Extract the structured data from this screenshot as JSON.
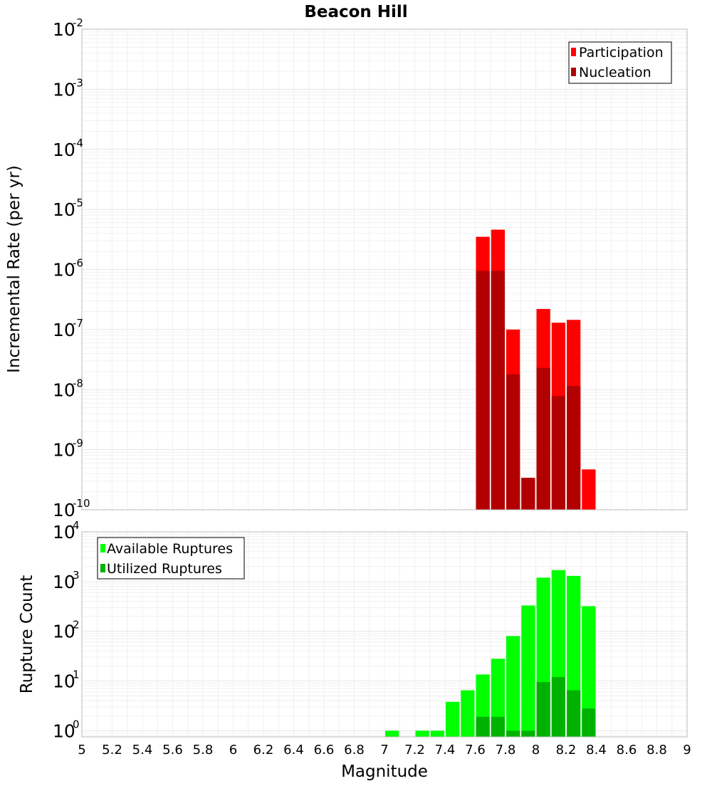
{
  "chart_data": [
    {
      "type": "bar",
      "title": "Beacon Hill",
      "xlabel": "",
      "ylabel": "Incremental Rate (per yr)",
      "yscale": "log",
      "ylim": [
        1e-10,
        0.01
      ],
      "xlim": [
        5,
        9
      ],
      "bin_width": 0.1,
      "legend": "top-right",
      "grid": true,
      "y_ticks": [
        {
          "base": "10",
          "exp": "-10"
        },
        {
          "base": "10",
          "exp": "-9"
        },
        {
          "base": "10",
          "exp": "-8"
        },
        {
          "base": "10",
          "exp": "-7"
        },
        {
          "base": "10",
          "exp": "-6"
        },
        {
          "base": "10",
          "exp": "-5"
        },
        {
          "base": "10",
          "exp": "-4"
        },
        {
          "base": "10",
          "exp": "-3"
        },
        {
          "base": "10",
          "exp": "-2"
        }
      ],
      "series": [
        {
          "name": "Participation",
          "color": "#ff0000",
          "x": [
            7.65,
            7.75,
            7.85,
            7.95,
            8.05,
            8.15,
            8.25,
            8.35
          ],
          "values": [
            3.5e-06,
            4.6e-06,
            1e-07,
            3.4e-10,
            2.2e-07,
            1.3e-07,
            1.45e-07,
            4.7e-10
          ]
        },
        {
          "name": "Nucleation",
          "color": "#b20000",
          "x": [
            7.65,
            7.75,
            7.85,
            7.95,
            8.05,
            8.15,
            8.25,
            8.35
          ],
          "values": [
            9.5e-07,
            9.5e-07,
            1.8e-08,
            3.4e-10,
            2.3e-08,
            7.8e-09,
            1.15e-08,
            1e-10
          ]
        }
      ]
    },
    {
      "type": "bar",
      "title": "",
      "xlabel": "Magnitude",
      "ylabel": "Rupture Count",
      "yscale": "log",
      "ylim": [
        0.75,
        10000
      ],
      "xlim": [
        5,
        9
      ],
      "bin_width": 0.1,
      "legend": "top-left",
      "grid": true,
      "y_ticks": [
        {
          "base": "10",
          "exp": "0",
          "value": 1
        },
        {
          "base": "10",
          "exp": "1",
          "value": 10
        },
        {
          "base": "10",
          "exp": "2",
          "value": 100
        },
        {
          "base": "10",
          "exp": "3",
          "value": 1000
        },
        {
          "base": "10",
          "exp": "4",
          "value": 10000
        }
      ],
      "x_ticks": [
        "5",
        "5.2",
        "5.4",
        "5.6",
        "5.8",
        "6",
        "6.2",
        "6.4",
        "6.6",
        "6.8",
        "7",
        "7.2",
        "7.4",
        "7.6",
        "7.8",
        "8",
        "8.2",
        "8.4",
        "8.6",
        "8.8",
        "9"
      ],
      "series": [
        {
          "name": "Available Ruptures",
          "color": "#00ff00",
          "x": [
            7.05,
            7.25,
            7.35,
            7.45,
            7.55,
            7.65,
            7.75,
            7.85,
            7.95,
            8.05,
            8.15,
            8.25,
            8.35
          ],
          "values": [
            1,
            1,
            1,
            3.8,
            6.5,
            13.5,
            28,
            80,
            330,
            1200,
            1700,
            1300,
            320
          ]
        },
        {
          "name": "Utilized Ruptures",
          "color": "#00b200",
          "x": [
            7.85,
            7.95,
            8.05,
            8.15,
            8.25,
            8.35
          ],
          "values": [
            1,
            1,
            9.5,
            12,
            6.5,
            2.8
          ],
          "x_extra": [
            7.65,
            7.75
          ],
          "values_extra": [
            1.9,
            1.9
          ]
        }
      ]
    }
  ]
}
